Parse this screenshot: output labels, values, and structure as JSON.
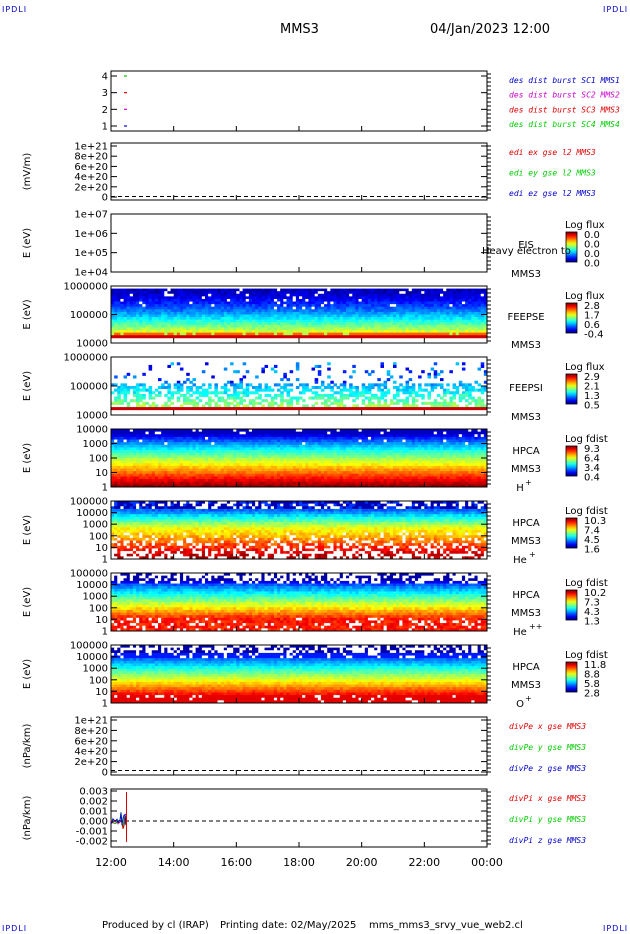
{
  "header": {
    "corner_label": "IPDLI",
    "spacecraft": "MMS3",
    "datetime": "04/Jan/2023 12:00"
  },
  "footer": {
    "produced_by": "Produced by cl (IRAP)",
    "printing_date": "Printing date: 02/May/2025",
    "script_name": "mms_mms3_srvy_vue_web2.cl"
  },
  "colors": {
    "red": "#dd0000",
    "green": "#00cc00",
    "blue": "#0000cc",
    "magenta": "#cc00cc"
  },
  "chart_data": {
    "type": "heatmap",
    "x_ticks": [
      "12:00",
      "14:00",
      "16:00",
      "18:00",
      "20:00",
      "22:00",
      "00:00"
    ],
    "panels": [
      {
        "id": "des",
        "type": "line",
        "y_ticks": [
          "4",
          "3",
          "2",
          "1"
        ],
        "ylabel": "",
        "legend": [
          {
            "text": "des dist burst SC1 MMS1",
            "color": "#0000cc"
          },
          {
            "text": "des dist burst SC2 MMS2",
            "color": "#cc00cc"
          },
          {
            "text": "des dist burst SC3 MMS3",
            "color": "#dd0000"
          },
          {
            "text": "des dist burst SC4 MMS4",
            "color": "#00cc00"
          }
        ],
        "marks": [
          {
            "y": 4,
            "color": "#00cc00"
          },
          {
            "y": 3,
            "color": "#dd0000"
          },
          {
            "y": 2,
            "color": "#cc00cc"
          },
          {
            "y": 1,
            "color": "#0000cc"
          }
        ]
      },
      {
        "id": "edi",
        "type": "line",
        "y_ticks": [
          "1e+21",
          "8e+20",
          "6e+20",
          "4e+20",
          "2e+20",
          "0"
        ],
        "ylabel": "(mV/m)",
        "legend": [
          {
            "text": "edi ex gse l2 MMS3",
            "color": "#dd0000"
          },
          {
            "text": "edi ey gse l2 MMS3",
            "color": "#00cc00"
          },
          {
            "text": "edi ez gse l2 MMS3",
            "color": "#0000cc"
          }
        ]
      },
      {
        "id": "eis",
        "type": "heatmap",
        "y_ticks": [
          "1e+07",
          "1e+06",
          "1e+05",
          "1e+04"
        ],
        "ylabel": "E (eV)",
        "instrument": [
          "EIS",
          "MMS3"
        ],
        "overlay_text": "Heavy electron to",
        "cbar_title": "Log flux",
        "cbar_ticks": [
          "0.0",
          "0.0",
          "0.0",
          "0.0"
        ]
      },
      {
        "id": "feepse",
        "type": "heatmap",
        "y_ticks": [
          "1000000",
          "100000",
          "10000"
        ],
        "ylabel": "E (eV)",
        "instrument": [
          "FEEPSE",
          "MMS3"
        ],
        "cbar_title": "Log flux",
        "cbar_ticks": [
          "2.8",
          "1.7",
          "0.6",
          "-0.4"
        ]
      },
      {
        "id": "feepsi",
        "type": "heatmap",
        "y_ticks": [
          "1000000",
          "100000",
          "10000"
        ],
        "ylabel": "E (eV)",
        "instrument": [
          "FEEPSI",
          "MMS3"
        ],
        "cbar_title": "Log flux",
        "cbar_ticks": [
          "2.9",
          "2.1",
          "1.3",
          "0.5"
        ]
      },
      {
        "id": "hpca_h",
        "type": "heatmap",
        "y_ticks": [
          "10000",
          "1000",
          "100",
          "10",
          "1"
        ],
        "ylabel": "E (eV)",
        "instrument": [
          "HPCA",
          "MMS3"
        ],
        "species": "H",
        "species_sup": "+",
        "cbar_title": "Log fdist",
        "cbar_ticks": [
          "9.3",
          "6.4",
          "3.4",
          "0.4"
        ]
      },
      {
        "id": "hpca_he",
        "type": "heatmap",
        "y_ticks": [
          "100000",
          "10000",
          "1000",
          "100",
          "10",
          "1"
        ],
        "ylabel": "E (eV)",
        "instrument": [
          "HPCA",
          "MMS3"
        ],
        "species": "He",
        "species_sup": "+",
        "cbar_title": "Log fdist",
        "cbar_ticks": [
          "10.3",
          "7.4",
          "4.5",
          "1.6"
        ]
      },
      {
        "id": "hpca_hepp",
        "type": "heatmap",
        "y_ticks": [
          "100000",
          "10000",
          "1000",
          "100",
          "10",
          "1"
        ],
        "ylabel": "E (eV)",
        "instrument": [
          "HPCA",
          "MMS3"
        ],
        "species": "He",
        "species_sup": "++",
        "cbar_title": "Log fdist",
        "cbar_ticks": [
          "10.2",
          "7.3",
          "4.3",
          "1.3"
        ]
      },
      {
        "id": "hpca_o",
        "type": "heatmap",
        "y_ticks": [
          "100000",
          "10000",
          "1000",
          "100",
          "10",
          "1"
        ],
        "ylabel": "E (eV)",
        "instrument": [
          "HPCA",
          "MMS3"
        ],
        "species": "O",
        "species_sup": "+",
        "cbar_title": "Log fdist",
        "cbar_ticks": [
          "11.8",
          "8.8",
          "5.8",
          "2.8"
        ]
      },
      {
        "id": "divpe",
        "type": "line",
        "y_ticks": [
          "1e+21",
          "8e+20",
          "6e+20",
          "4e+20",
          "2e+20",
          "0"
        ],
        "ylabel": "(nPa/km)",
        "legend": [
          {
            "text": "divPe x gse MMS3",
            "color": "#dd0000"
          },
          {
            "text": "divPe y gse MMS3",
            "color": "#00cc00"
          },
          {
            "text": "divPe z gse MMS3",
            "color": "#0000cc"
          }
        ]
      },
      {
        "id": "divpi",
        "type": "line",
        "y_ticks": [
          "0.003",
          "0.002",
          "0.001",
          "0.000",
          "-0.001",
          "-0.002"
        ],
        "ylabel": "(nPa/km)",
        "legend": [
          {
            "text": "divPi x gse MMS3",
            "color": "#dd0000"
          },
          {
            "text": "divPi y gse MMS3",
            "color": "#00cc00"
          },
          {
            "text": "divPi z gse MMS3",
            "color": "#0000cc"
          }
        ]
      }
    ]
  }
}
